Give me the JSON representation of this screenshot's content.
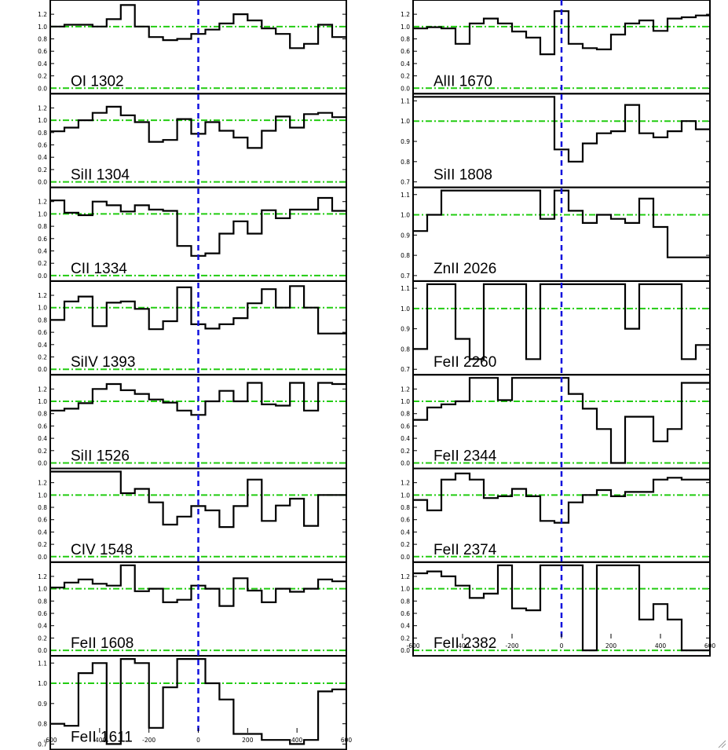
{
  "colors": {
    "spectrum": "#000000",
    "zero_line": "#1010dd",
    "unity_line": "#22cc11",
    "frame": "#000000"
  },
  "chart_data": [
    {
      "type": "line",
      "column": "left",
      "x_ticks": [
        -600,
        -400,
        -200,
        0,
        200,
        400,
        600
      ],
      "xlim": [
        -600,
        600
      ],
      "panels": [
        {
          "label": "OI 1302",
          "ylim": [
            0,
            1.38
          ],
          "y_ticks": [
            "0.0",
            "0.2",
            "0.4",
            "0.6",
            "0.8",
            "1.0",
            "1.2"
          ],
          "y_tick_values": [
            0,
            0.2,
            0.4,
            0.6,
            0.8,
            1.0,
            1.2
          ],
          "steps": [
            1.0,
            1.03,
            1.03,
            1.0,
            1.12,
            1.35,
            1.0,
            0.83,
            0.78,
            0.8,
            0.88,
            0.95,
            1.05,
            1.2,
            1.1,
            0.97,
            0.88,
            0.65,
            0.72,
            1.03,
            0.83
          ]
        },
        {
          "label": "SiII 1304",
          "ylim": [
            0,
            1.38
          ],
          "y_ticks": [
            "0.0",
            "0.2",
            "0.4",
            "0.6",
            "0.8",
            "1.0",
            "1.2"
          ],
          "y_tick_values": [
            0,
            0.2,
            0.4,
            0.6,
            0.8,
            1.0,
            1.2
          ],
          "steps": [
            0.82,
            0.88,
            1.0,
            1.12,
            1.22,
            1.08,
            0.97,
            0.65,
            0.68,
            1.02,
            0.78,
            0.97,
            0.83,
            0.72,
            0.55,
            0.83,
            1.06,
            0.88,
            1.1,
            1.12,
            1.05
          ]
        },
        {
          "label": "CII 1334",
          "ylim": [
            0,
            1.38
          ],
          "y_ticks": [
            "0.0",
            "0.2",
            "0.4",
            "0.6",
            "0.8",
            "1.0",
            "1.2"
          ],
          "y_tick_values": [
            0,
            0.2,
            0.4,
            0.6,
            0.8,
            1.0,
            1.2
          ],
          "steps": [
            1.22,
            1.02,
            0.98,
            1.2,
            1.14,
            1.04,
            1.14,
            1.07,
            1.05,
            0.48,
            0.32,
            0.36,
            0.68,
            0.88,
            0.68,
            1.06,
            0.93,
            1.07,
            1.07,
            1.26,
            1.05
          ]
        },
        {
          "label": "SiIV 1393",
          "ylim": [
            0,
            1.38
          ],
          "y_ticks": [
            "0.0",
            "0.2",
            "0.4",
            "0.6",
            "0.8",
            "1.0",
            "1.2"
          ],
          "y_tick_values": [
            0,
            0.2,
            0.4,
            0.6,
            0.8,
            1.0,
            1.2
          ],
          "steps": [
            0.8,
            1.1,
            1.18,
            0.7,
            1.08,
            1.1,
            0.98,
            0.65,
            0.78,
            1.33,
            0.73,
            0.66,
            0.73,
            0.83,
            1.07,
            1.3,
            1.0,
            1.35,
            1.0,
            0.58,
            0.58
          ]
        },
        {
          "label": "SiII 1526",
          "ylim": [
            0,
            1.38
          ],
          "y_ticks": [
            "0.0",
            "0.2",
            "0.4",
            "0.6",
            "0.8",
            "1.0",
            "1.2"
          ],
          "y_tick_values": [
            0,
            0.2,
            0.4,
            0.6,
            0.8,
            1.0,
            1.2
          ],
          "steps": [
            0.85,
            0.88,
            0.97,
            1.2,
            1.28,
            1.18,
            1.12,
            1.03,
            0.98,
            0.85,
            0.78,
            1.0,
            1.17,
            1.0,
            1.3,
            0.95,
            0.93,
            1.3,
            0.85,
            1.3,
            1.28
          ]
        },
        {
          "label": "CIV 1548",
          "ylim": [
            0,
            1.38
          ],
          "y_ticks": [
            "0.0",
            "0.2",
            "0.4",
            "0.6",
            "0.8",
            "1.0",
            "1.2"
          ],
          "y_tick_values": [
            0,
            0.2,
            0.4,
            0.6,
            0.8,
            1.0,
            1.2
          ],
          "steps": [
            1.38,
            1.38,
            1.38,
            1.38,
            1.38,
            1.03,
            1.1,
            0.88,
            0.52,
            0.65,
            0.82,
            0.75,
            0.48,
            0.82,
            1.25,
            0.58,
            0.83,
            0.94,
            0.5,
            1.0,
            1.0
          ]
        },
        {
          "label": "FeII 1608",
          "ylim": [
            0,
            1.38
          ],
          "y_ticks": [
            "0.0",
            "0.2",
            "0.4",
            "0.6",
            "0.8",
            "1.0",
            "1.2"
          ],
          "y_tick_values": [
            0,
            0.2,
            0.4,
            0.6,
            0.8,
            1.0,
            1.2
          ],
          "steps": [
            1.02,
            1.1,
            1.15,
            1.08,
            1.05,
            1.38,
            0.96,
            1.0,
            0.78,
            0.82,
            1.05,
            1.0,
            0.72,
            1.17,
            0.97,
            0.78,
            1.0,
            0.95,
            1.0,
            1.15,
            1.12
          ]
        },
        {
          "label": "FeII 1611",
          "ylim": [
            0.7,
            1.12
          ],
          "y_ticks": [
            "0.7",
            "0.8",
            "0.9",
            "1.0",
            "1.1"
          ],
          "y_tick_values": [
            0.7,
            0.8,
            0.9,
            1.0,
            1.1
          ],
          "steps": [
            0.8,
            0.79,
            1.05,
            1.1,
            0.7,
            1.12,
            1.1,
            0.78,
            0.98,
            1.12,
            1.12,
            1.0,
            0.92,
            0.75,
            0.75,
            0.72,
            0.72,
            0.7,
            0.72,
            0.96,
            0.97
          ]
        }
      ]
    },
    {
      "type": "line",
      "column": "right",
      "x_ticks": [
        -600,
        -400,
        -200,
        0,
        200,
        400,
        600
      ],
      "xlim": [
        -600,
        600
      ],
      "panels": [
        {
          "label": "AlII 1670",
          "ylim": [
            0,
            1.38
          ],
          "y_ticks": [
            "0.0",
            "0.2",
            "0.4",
            "0.6",
            "0.8",
            "1.0",
            "1.2"
          ],
          "y_tick_values": [
            0,
            0.2,
            0.4,
            0.6,
            0.8,
            1.0,
            1.2
          ],
          "steps": [
            0.97,
            0.99,
            0.97,
            0.72,
            1.05,
            1.13,
            1.05,
            0.92,
            0.82,
            0.55,
            1.25,
            0.72,
            0.65,
            0.63,
            0.87,
            1.05,
            1.1,
            0.93,
            1.13,
            1.15,
            1.18
          ]
        },
        {
          "label": "SiII 1808",
          "ylim": [
            0.7,
            1.12
          ],
          "y_ticks": [
            "0.7",
            "0.8",
            "0.9",
            "1.0",
            "1.1"
          ],
          "y_tick_values": [
            0.7,
            0.8,
            0.9,
            1.0,
            1.1
          ],
          "steps": [
            1.12,
            1.12,
            1.12,
            1.12,
            1.12,
            1.12,
            1.12,
            1.12,
            1.12,
            1.12,
            0.86,
            0.8,
            0.89,
            0.94,
            0.95,
            1.08,
            0.94,
            0.92,
            0.95,
            1.0,
            0.96
          ]
        },
        {
          "label": "ZnII 2026",
          "ylim": [
            0.7,
            1.12
          ],
          "y_ticks": [
            "0.7",
            "0.8",
            "0.9",
            "1.0",
            "1.1"
          ],
          "y_tick_values": [
            0.7,
            0.8,
            0.9,
            1.0,
            1.1
          ],
          "steps": [
            0.92,
            1.0,
            1.12,
            1.12,
            1.12,
            1.12,
            1.12,
            1.12,
            1.12,
            0.98,
            1.12,
            1.02,
            0.96,
            1.0,
            0.98,
            0.96,
            1.08,
            0.94,
            0.79,
            0.79,
            0.79
          ]
        },
        {
          "label": "FeII 2260",
          "ylim": [
            0.7,
            1.12
          ],
          "y_ticks": [
            "0.7",
            "0.8",
            "0.9",
            "1.0",
            "1.1"
          ],
          "y_tick_values": [
            0.7,
            0.8,
            0.9,
            1.0,
            1.1
          ],
          "steps": [
            0.8,
            1.12,
            1.12,
            0.85,
            0.75,
            1.12,
            1.12,
            1.12,
            0.75,
            1.12,
            1.12,
            1.12,
            1.12,
            1.12,
            1.12,
            0.9,
            1.12,
            1.12,
            1.12,
            0.75,
            0.82
          ]
        },
        {
          "label": "FeII 2344",
          "ylim": [
            0,
            1.38
          ],
          "y_ticks": [
            "0.0",
            "0.2",
            "0.4",
            "0.6",
            "0.8",
            "1.0",
            "1.2"
          ],
          "y_tick_values": [
            0,
            0.2,
            0.4,
            0.6,
            0.8,
            1.0,
            1.2
          ],
          "steps": [
            0.7,
            0.9,
            0.95,
            1.0,
            1.38,
            1.38,
            1.02,
            1.38,
            1.38,
            1.38,
            1.38,
            1.12,
            0.88,
            0.55,
            0.0,
            0.75,
            0.75,
            0.35,
            0.55,
            1.3,
            1.3
          ]
        },
        {
          "label": "FeII 2374",
          "ylim": [
            0,
            1.38
          ],
          "y_ticks": [
            "0.0",
            "0.2",
            "0.4",
            "0.6",
            "0.8",
            "1.0",
            "1.2"
          ],
          "y_tick_values": [
            0,
            0.2,
            0.4,
            0.6,
            0.8,
            1.0,
            1.2
          ],
          "steps": [
            0.92,
            0.75,
            1.25,
            1.35,
            1.25,
            0.95,
            0.98,
            1.1,
            0.98,
            0.58,
            0.55,
            0.88,
            1.0,
            1.08,
            0.98,
            1.05,
            1.05,
            1.25,
            1.28,
            1.25,
            1.25
          ]
        },
        {
          "label": "FeII 2382",
          "ylim": [
            0,
            1.38
          ],
          "y_ticks": [
            "0.0",
            "0.2",
            "0.4",
            "0.6",
            "0.8",
            "1.0",
            "1.2"
          ],
          "y_tick_values": [
            0,
            0.2,
            0.4,
            0.6,
            0.8,
            1.0,
            1.2
          ],
          "steps": [
            1.25,
            1.28,
            1.2,
            1.05,
            0.85,
            0.92,
            1.38,
            0.68,
            0.65,
            1.38,
            1.38,
            1.38,
            0.0,
            1.38,
            1.38,
            1.38,
            0.5,
            0.75,
            0.5,
            0.0,
            0.0
          ]
        }
      ]
    }
  ]
}
